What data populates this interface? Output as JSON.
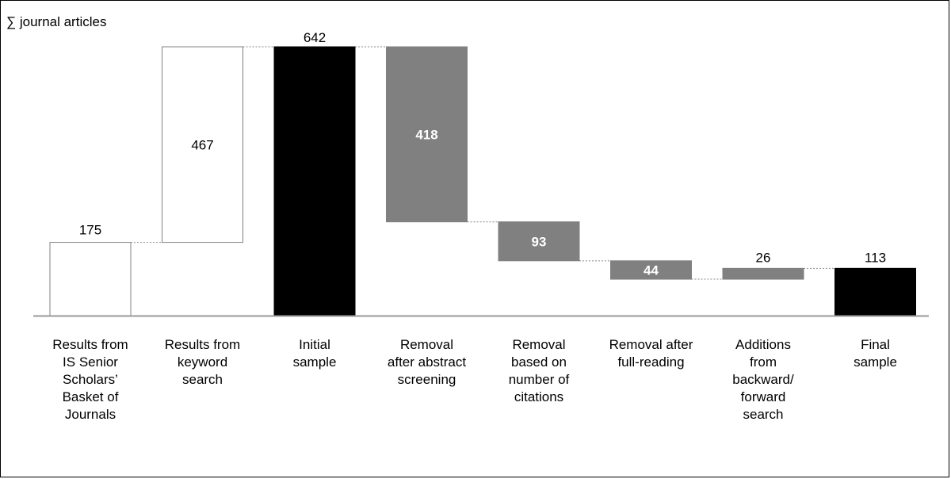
{
  "chart_data": {
    "type": "waterfall",
    "ylabel": "∑ journal articles",
    "categories": [
      "Results from IS Senior Scholars’ Basket of Journals",
      "Results from keyword search",
      "Initial sample",
      "Removal after abstract screening",
      "Removal based on number of citations",
      "Removal after full-reading",
      "Additions from backward/ forward search",
      "Final sample"
    ],
    "category_lines": [
      [
        "Results from",
        "IS Senior",
        "Scholars’",
        "Basket of",
        "Journals"
      ],
      [
        "Results from",
        "keyword",
        "search"
      ],
      [
        "Initial",
        "sample"
      ],
      [
        "Removal",
        "after abstract",
        "screening"
      ],
      [
        "Removal",
        "based on",
        "number of",
        "citations"
      ],
      [
        "Removal after",
        "full-reading"
      ],
      [
        "Additions",
        "from",
        "backward/",
        "forward",
        "search"
      ],
      [
        "Final",
        "sample"
      ]
    ],
    "bars": [
      {
        "label": "175",
        "base": 0,
        "top": 175,
        "style": "addition"
      },
      {
        "label": "467",
        "base": 175,
        "top": 642,
        "style": "addition"
      },
      {
        "label": "642",
        "base": 0,
        "top": 642,
        "style": "total"
      },
      {
        "label": "418",
        "base": 224,
        "top": 642,
        "style": "removal"
      },
      {
        "label": "93",
        "base": 131,
        "top": 224,
        "style": "removal"
      },
      {
        "label": "44",
        "base": 87,
        "top": 131,
        "style": "removal"
      },
      {
        "label": "26",
        "base": 87,
        "top": 113,
        "style": "removal"
      },
      {
        "label": "113",
        "base": 0,
        "top": 113,
        "style": "total"
      }
    ],
    "ylim": [
      0,
      642
    ],
    "colors": {
      "addition": "#ffffff",
      "total": "#000000",
      "removal": "#808080",
      "outline": "#808080",
      "axis": "#9a9a9a",
      "connector": "#8a8a8a"
    }
  }
}
